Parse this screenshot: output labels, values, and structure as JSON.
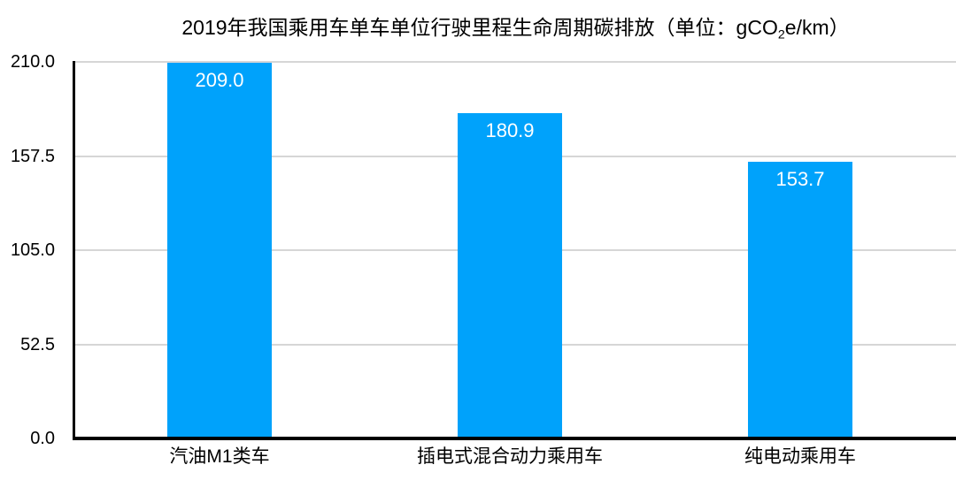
{
  "chart_data": {
    "type": "bar",
    "title": "2019年我国乘用车单车单位行驶里程生命周期碳排放（单位：gCO2e/km）",
    "title_parts": {
      "prefix": "2019年我国乘用车单车单位行驶里程生命周期碳排放（单位：gCO",
      "sub": "2",
      "suffix": "e/km）"
    },
    "categories": [
      "汽油M1类车",
      "插电式混合动力乘用车",
      "纯电动乘用车"
    ],
    "values": [
      209.0,
      180.9,
      153.7
    ],
    "value_labels": [
      "209.0",
      "180.9",
      "153.7"
    ],
    "xlabel": "",
    "ylabel": "",
    "ylim": [
      0,
      210
    ],
    "yticks": [
      {
        "value": 210.0,
        "label": "210.0"
      },
      {
        "value": 157.5,
        "label": "157.5"
      },
      {
        "value": 105.0,
        "label": "105.0"
      },
      {
        "value": 52.5,
        "label": "52.5"
      },
      {
        "value": 0.0,
        "label": "0.0"
      }
    ],
    "grid": true,
    "legend_position": "none",
    "colors": {
      "bar": "#00A2FB",
      "value_label_text": "#FFFFFF",
      "gridline": "#D6D6D6",
      "axis": "#000000",
      "text": "#000000",
      "background": "#FFFFFF"
    }
  }
}
